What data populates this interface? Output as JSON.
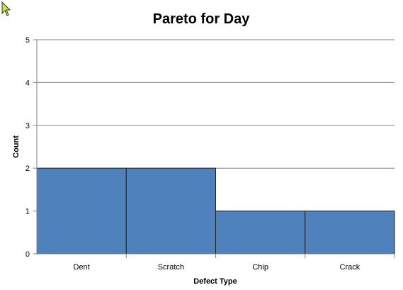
{
  "chart_data": {
    "type": "bar",
    "title": "Pareto for Day",
    "xlabel": "Defect Type",
    "ylabel": "Count",
    "categories": [
      "Dent",
      "Scratch",
      "Chip",
      "Crack"
    ],
    "values": [
      2,
      2,
      1,
      1
    ],
    "ylim": [
      0,
      5
    ],
    "yticks": [
      "0",
      "1",
      "2",
      "3",
      "4",
      "5"
    ],
    "grid": true,
    "bar_color": "#4F81BD",
    "bar_border_color": "#1f1f1f"
  }
}
